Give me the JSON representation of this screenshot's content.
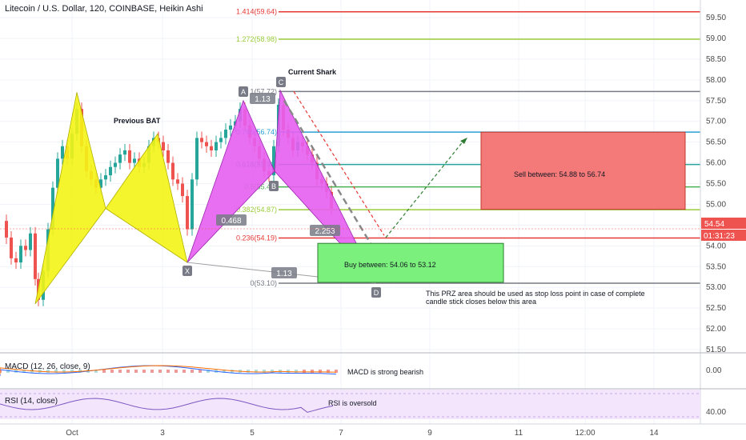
{
  "header": {
    "title": "Litecoin / U.S. Dollar, 120, COINBASE, Heikin Ashi"
  },
  "colors": {
    "bull": "#26a69a",
    "bear": "#ef5350",
    "bat": "#f4f416",
    "shark": "#e55ff0",
    "sell_box": "#f47a7a",
    "buy_box": "#7cf07c",
    "macd_panel": "#ffffff",
    "rsi_panel": "#f3e5fb"
  },
  "chart_data": {
    "type": "candlestick",
    "symbol": "Litecoin / U.S. Dollar",
    "interval": "120",
    "exchange": "COINBASE",
    "style": "Heikin Ashi",
    "price_axis": {
      "ticks": [
        "59.50",
        "59.00",
        "58.50",
        "58.00",
        "57.50",
        "57.00",
        "56.50",
        "56.00",
        "55.50",
        "55.00",
        "54.50",
        "54.00",
        "53.50",
        "53.00",
        "52.50",
        "52.00",
        "51.50"
      ],
      "ylim": [
        51.5,
        59.75
      ]
    },
    "time_axis": {
      "ticks": [
        "Oct",
        "3",
        "5",
        "7",
        "9",
        "11",
        "12:00",
        "14"
      ]
    },
    "last_price": "54.54",
    "countdown": "01:31:23",
    "fib_levels": [
      {
        "label": "1.414(59.64)",
        "price": 59.64,
        "color": "#e53935"
      },
      {
        "label": "1.272(58.98)",
        "price": 58.98,
        "color": "#9ccc3a"
      },
      {
        "label": "1(57.72)",
        "price": 57.72,
        "color": "#787b86"
      },
      {
        "label": "0.786(56.74)",
        "price": 56.74,
        "color": "#2a9fd6"
      },
      {
        "label": "0.618(55.96)",
        "price": 55.96,
        "color": "#26a69a"
      },
      {
        "label": "0.5(55.42)",
        "price": 55.42,
        "color": "#4caf50"
      },
      {
        "label": "0.382(54.87)",
        "price": 54.87,
        "color": "#9ccc3a"
      },
      {
        "label": "0.236(54.19)",
        "price": 54.19,
        "color": "#e53935"
      },
      {
        "label": "0(53.10)",
        "price": 53.1,
        "color": "#787b86"
      }
    ],
    "patterns": {
      "bat": {
        "label": "Previous BAT"
      },
      "shark": {
        "label": "Current Shark"
      },
      "points": {
        "A": "A",
        "B": "B",
        "C": "C",
        "D": "D",
        "X": "X"
      },
      "ratios": [
        "1.13",
        "0.468",
        "2.253",
        "1.13"
      ]
    },
    "annotations": {
      "sell": "Sell between: 54.88 to 56.74",
      "buy": "Buy between: 54.06 to 53.12",
      "prz_line1": "This PRZ area should be used as stop loss point in case of complete",
      "prz_line2": "candle stick closes below this area"
    },
    "macd": {
      "label": "MACD (12, 26, close, 9)",
      "note": "MACD is strong bearish",
      "ticks": [
        "0.00"
      ]
    },
    "rsi": {
      "label": "RSI (14, close)",
      "note": "RSI is oversold",
      "ticks": [
        "40.00"
      ]
    },
    "grid": true
  }
}
